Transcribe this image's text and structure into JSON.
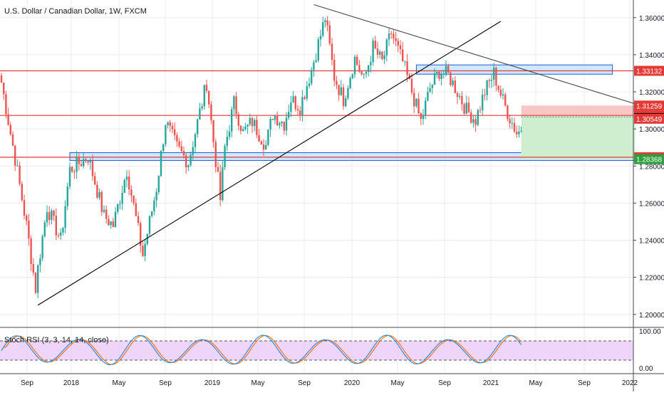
{
  "header": {
    "title": "U.S. Dollar / Canadian Dollar, 1W, FXCM"
  },
  "colors": {
    "up": "#26a69a",
    "down": "#ef5350",
    "grid": "#e9ecef",
    "hline": "#e53935",
    "trend": "#000000",
    "zone_fill": "#bbdefb",
    "zone_border": "#1e5bd6",
    "stop_fill": "#f7c6c5",
    "target_fill": "#cfeecf",
    "indicator_fill": "#e9c8f5",
    "k_line": "#1e88e5",
    "d_line": "#ff6d00"
  },
  "chart_data": {
    "type": "candlestick",
    "symbol": "USDCAD",
    "interval": "1W",
    "source": "FXCM",
    "ylim": [
      1.193,
      1.3695
    ],
    "yticks": [
      "1.20000",
      "1.22000",
      "1.24000",
      "1.26000",
      "1.28000",
      "1.30000",
      "1.32000",
      "1.34000",
      "1.36000"
    ],
    "xticks": [
      "Sep",
      "2018",
      "May",
      "Sep",
      "2019",
      "May",
      "Sep",
      "2020",
      "May",
      "Sep",
      "2021",
      "May",
      "Sep",
      "2022"
    ],
    "anchors": [
      [
        0,
        1.325
      ],
      [
        6,
        1.284
      ],
      [
        11,
        1.248
      ],
      [
        15,
        1.214
      ],
      [
        16,
        1.225
      ],
      [
        20,
        1.258
      ],
      [
        26,
        1.24
      ],
      [
        30,
        1.278
      ],
      [
        38,
        1.285
      ],
      [
        45,
        1.253
      ],
      [
        49,
        1.248
      ],
      [
        55,
        1.278
      ],
      [
        62,
        1.232
      ],
      [
        68,
        1.268
      ],
      [
        72,
        1.304
      ],
      [
        77,
        1.29
      ],
      [
        82,
        1.282
      ],
      [
        90,
        1.325
      ],
      [
        96,
        1.262
      ],
      [
        98,
        1.29
      ],
      [
        102,
        1.314
      ],
      [
        106,
        1.298
      ],
      [
        110,
        1.304
      ],
      [
        116,
        1.291
      ],
      [
        119,
        1.308
      ],
      [
        124,
        1.303
      ],
      [
        127,
        1.316
      ],
      [
        131,
        1.312
      ],
      [
        136,
        1.332
      ],
      [
        142,
        1.36
      ],
      [
        146,
        1.328
      ],
      [
        150,
        1.316
      ],
      [
        155,
        1.338
      ],
      [
        159,
        1.326
      ],
      [
        163,
        1.344
      ],
      [
        167,
        1.336
      ],
      [
        171,
        1.352
      ],
      [
        176,
        1.336
      ],
      [
        180,
        1.32
      ],
      [
        184,
        1.304
      ],
      [
        188,
        1.322
      ],
      [
        192,
        1.331
      ],
      [
        196,
        1.329
      ],
      [
        200,
        1.32
      ],
      [
        204,
        1.31
      ],
      [
        208,
        1.305
      ],
      [
        212,
        1.32
      ],
      [
        216,
        1.33
      ],
      [
        220,
        1.315
      ],
      [
        223,
        1.306
      ],
      [
        226,
        1.298
      ],
      [
        228,
        1.299
      ]
    ],
    "horizontal_levels": [
      "1.33132",
      "1.30726",
      "1.28474"
    ],
    "zones": [
      {
        "from_bar": 182,
        "to_bar": 268,
        "low": 1.3295,
        "high": 1.3345
      },
      {
        "from_bar": 30,
        "to_bar": 349,
        "low": 1.283,
        "high": 1.2872
      }
    ],
    "trendlines": [
      {
        "from": [
          16,
          1.205
        ],
        "to": [
          219,
          1.358
        ]
      },
      {
        "from": [
          137,
          1.367
        ],
        "to": [
          361,
          1.282
        ]
      }
    ],
    "position": {
      "from_bar": 228,
      "to_bar": 278,
      "entry": 1.30726,
      "stop": 1.31259,
      "target": 1.28368
    },
    "price_labels": [
      {
        "value": "1.33132",
        "y": 1.33132,
        "bg": "#e53935",
        "fg": "#ffffff"
      },
      {
        "value": "1.31259",
        "y": 1.31259,
        "bg": "#e53935",
        "fg": "#ffffff"
      },
      {
        "value": "1.30726",
        "y": 1.30726,
        "bg": "#e53935",
        "fg": "#ffffff"
      },
      {
        "value": "1.30583",
        "y": 1.30583,
        "bg": "#000000",
        "fg": "#ffffff"
      },
      {
        "value": "1.30549",
        "y": 1.30549,
        "bg": "#e53935",
        "fg": "#ffffff"
      },
      {
        "value": "1.28474",
        "y": 1.28474,
        "bg": "#e53935",
        "fg": "#ffffff"
      },
      {
        "value": "1.28368",
        "y": 1.28368,
        "bg": "#2e9e3e",
        "fg": "#ffffff"
      }
    ],
    "indicator": {
      "label": "Stoch RSI (3, 3, 14, 14, close)",
      "ylim": [
        0,
        100
      ],
      "ytick_labels": [
        "100.00",
        "0.00"
      ],
      "bands": [
        20,
        80
      ]
    }
  }
}
